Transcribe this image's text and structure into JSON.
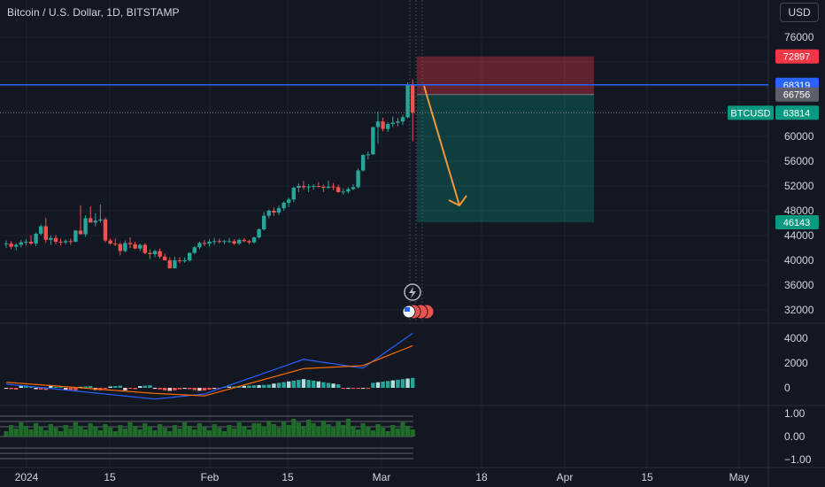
{
  "header": {
    "symbol_title": "Bitcoin / U.S. Dollar, 1D, BITSTAMP",
    "currency": "USD"
  },
  "colors": {
    "background": "#131722",
    "grid": "#1e222d",
    "up": "#26a69a",
    "down": "#ef5350",
    "hline": "#2962ff",
    "arrow": "#f0993a",
    "macd": "#2962ff",
    "signal": "#ff6d00",
    "osc_green": "#1f6b2a"
  },
  "chart_data": {
    "type": "candlestick",
    "price_axis": {
      "ticks": [
        76000,
        72000,
        68000,
        64000,
        60000,
        56000,
        52000,
        48000,
        44000,
        40000,
        36000,
        32000
      ],
      "tick_labels": [
        "76000",
        "",
        "",
        "",
        "60000",
        "56000",
        "52000",
        "48000",
        "44000",
        "40000",
        "36000",
        "32000"
      ]
    },
    "time_axis": {
      "labels": [
        "2024",
        "15",
        "Feb",
        "15",
        "Mar",
        "18",
        "Apr",
        "15",
        "May"
      ]
    },
    "price_badges": [
      {
        "label": "72897",
        "value": 72897,
        "color": "#f23645"
      },
      {
        "label": "68319",
        "value": 68319,
        "color": "#2962ff"
      },
      {
        "label": "66756",
        "value": 66756,
        "color": "#5d606b"
      },
      {
        "label": "63814",
        "value": 63814,
        "color": "#089981"
      },
      {
        "label": "46143",
        "value": 46143,
        "color": "#089981"
      }
    ],
    "symbol_tag": {
      "label": "BTCUSD",
      "color": "#089981"
    },
    "horizontal_line": {
      "value": 68319
    },
    "position_box": {
      "entry": 66756,
      "stop": 72897,
      "target": 46143
    },
    "candles": [
      [
        42600,
        43200,
        42000,
        42700
      ],
      [
        42700,
        43100,
        41800,
        42200
      ],
      [
        42200,
        42800,
        41600,
        42500
      ],
      [
        42500,
        43300,
        42100,
        42900
      ],
      [
        42900,
        43400,
        42400,
        43000
      ],
      [
        43000,
        44000,
        42500,
        42700
      ],
      [
        42700,
        44500,
        42300,
        44300
      ],
      [
        44300,
        45800,
        44000,
        45500
      ],
      [
        45500,
        46900,
        42800,
        43300
      ],
      [
        43300,
        44000,
        42500,
        43600
      ],
      [
        43600,
        44100,
        42600,
        43000
      ],
      [
        43000,
        43500,
        42400,
        42900
      ],
      [
        42900,
        43400,
        42600,
        43100
      ],
      [
        43100,
        43500,
        42500,
        43000
      ],
      [
        43000,
        44900,
        42900,
        44800
      ],
      [
        44800,
        48900,
        44500,
        44200
      ],
      [
        44200,
        47300,
        43800,
        46800
      ],
      [
        46800,
        48700,
        46200,
        46100
      ],
      [
        46100,
        47600,
        45500,
        46400
      ],
      [
        46400,
        49000,
        46100,
        46600
      ],
      [
        46600,
        46900,
        42900,
        43200
      ],
      [
        43200,
        43500,
        42500,
        42700
      ],
      [
        42700,
        43500,
        42300,
        42600
      ],
      [
        42600,
        42900,
        40800,
        41500
      ],
      [
        41500,
        43200,
        41300,
        42800
      ],
      [
        42800,
        43700,
        42000,
        42600
      ],
      [
        42600,
        43000,
        41800,
        41900
      ],
      [
        41900,
        42700,
        41500,
        42500
      ],
      [
        42500,
        42800,
        41000,
        41200
      ],
      [
        41200,
        41800,
        40200,
        41000
      ],
      [
        41000,
        41700,
        40500,
        41500
      ],
      [
        41500,
        41900,
        40300,
        40600
      ],
      [
        40600,
        41100,
        40000,
        40000
      ],
      [
        40000,
        40500,
        38700,
        38700
      ],
      [
        38700,
        40600,
        38700,
        40000
      ],
      [
        40000,
        40500,
        39500,
        39900
      ],
      [
        39900,
        40500,
        39600,
        40000
      ],
      [
        40000,
        41300,
        39800,
        41200
      ],
      [
        41200,
        42300,
        41000,
        42100
      ],
      [
        42100,
        43000,
        41800,
        42800
      ],
      [
        42800,
        43300,
        42300,
        42700
      ],
      [
        42700,
        43400,
        42200,
        43000
      ],
      [
        43000,
        43600,
        42500,
        43100
      ],
      [
        43100,
        43500,
        42700,
        43000
      ],
      [
        43000,
        43300,
        42600,
        43100
      ],
      [
        43100,
        43600,
        42800,
        43100
      ],
      [
        43100,
        43400,
        42500,
        42700
      ],
      [
        42700,
        43500,
        42500,
        43300
      ],
      [
        43300,
        43600,
        42900,
        43100
      ],
      [
        43100,
        43300,
        42600,
        42900
      ],
      [
        42900,
        43800,
        42700,
        43700
      ],
      [
        43700,
        45200,
        43500,
        45000
      ],
      [
        45000,
        47800,
        44800,
        47200
      ],
      [
        47200,
        48200,
        46800,
        48000
      ],
      [
        48000,
        48500,
        47200,
        47700
      ],
      [
        47700,
        48800,
        47300,
        48400
      ],
      [
        48400,
        49500,
        48000,
        49300
      ],
      [
        49300,
        50100,
        48600,
        49800
      ],
      [
        49800,
        51900,
        49400,
        51700
      ],
      [
        51700,
        52400,
        51000,
        52000
      ],
      [
        52000,
        52800,
        51400,
        51800
      ],
      [
        51800,
        52300,
        51000,
        51900
      ],
      [
        51900,
        52300,
        51400,
        52000
      ],
      [
        52000,
        52600,
        51700,
        51900
      ],
      [
        51900,
        52200,
        51000,
        51700
      ],
      [
        51700,
        52900,
        51500,
        51900
      ],
      [
        51900,
        52500,
        51300,
        51800
      ],
      [
        51800,
        52200,
        50900,
        51000
      ],
      [
        51000,
        51600,
        50600,
        51100
      ],
      [
        51100,
        51800,
        50800,
        51500
      ],
      [
        51500,
        52300,
        51300,
        51800
      ],
      [
        51800,
        54800,
        51600,
        54500
      ],
      [
        54500,
        57100,
        54300,
        57000
      ],
      [
        57000,
        57600,
        56300,
        57100
      ],
      [
        57100,
        61500,
        57000,
        61500
      ],
      [
        61500,
        64000,
        58800,
        62400
      ],
      [
        62400,
        63000,
        60800,
        61200
      ],
      [
        61200,
        62300,
        60700,
        62000
      ],
      [
        62000,
        63200,
        61500,
        62200
      ],
      [
        62200,
        63000,
        61600,
        62400
      ],
      [
        62400,
        63500,
        61800,
        63100
      ],
      [
        63100,
        68700,
        62900,
        68300
      ],
      [
        68300,
        69200,
        59200,
        63800
      ]
    ],
    "indicators": {
      "macd": {
        "axis": [
          "4000",
          "2000",
          "0"
        ]
      },
      "oscillator": {
        "axis": [
          "1.00",
          "0.00",
          "−1.00"
        ]
      }
    }
  }
}
